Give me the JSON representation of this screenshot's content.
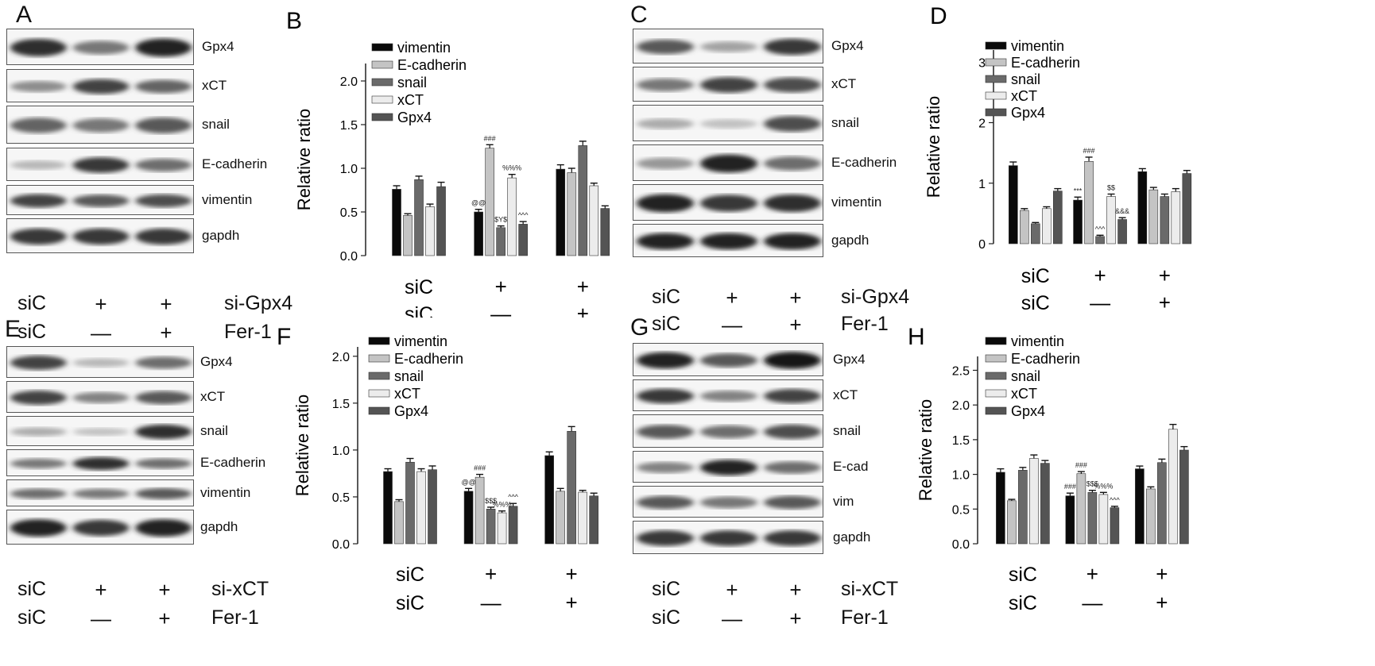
{
  "panels": {
    "A": {
      "letter": "A",
      "bands": [
        "Gpx4",
        "xCT",
        "snail",
        "E-cadherin",
        "vimentin",
        "gapdh"
      ],
      "rows": [
        {
          "c0": "siC",
          "c1": "+",
          "c2": "+",
          "label": "si-Gpx4"
        },
        {
          "c0": "siC",
          "c1": "—",
          "c2": "+",
          "label": "Fer-1"
        }
      ]
    },
    "C": {
      "letter": "C",
      "bands": [
        "Gpx4",
        "xCT",
        "snail",
        "E-cadherin",
        "vimentin",
        "gapdh"
      ],
      "rows": [
        {
          "c0": "siC",
          "c1": "+",
          "c2": "+",
          "label": "si-Gpx4"
        },
        {
          "c0": "siC",
          "c1": "—",
          "c2": "+",
          "label": "Fer-1"
        }
      ]
    },
    "E": {
      "letter": "E",
      "bands": [
        "Gpx4",
        "xCT",
        "snail",
        "E-cadherin",
        "vimentin",
        "gapdh"
      ],
      "rows": [
        {
          "c0": "siC",
          "c1": "+",
          "c2": "+",
          "label": "si-xCT"
        },
        {
          "c0": "siC",
          "c1": "—",
          "c2": "+",
          "label": "Fer-1"
        }
      ]
    },
    "G": {
      "letter": "G",
      "bands": [
        "Gpx4",
        "xCT",
        "snail",
        "E-cad",
        "vim",
        "gapdh"
      ],
      "rows": [
        {
          "c0": "siC",
          "c1": "+",
          "c2": "+",
          "label": "si-xCT"
        },
        {
          "c0": "siC",
          "c1": "—",
          "c2": "+",
          "label": "Fer-1"
        }
      ]
    }
  },
  "chart_data": [
    {
      "id": "B",
      "letter": "B",
      "type": "bar",
      "ylabel": "Relative ratio",
      "ylim": [
        0,
        2.2
      ],
      "yticks": [
        0.0,
        0.5,
        1.0,
        1.5,
        2.0
      ],
      "ytick_labels": [
        "0.0",
        "0.5",
        "1.0",
        "1.5",
        "2.0"
      ],
      "legend": "top-left",
      "groups": [
        {
          "r1": "siC",
          "r2": "siC"
        },
        {
          "r1": "+",
          "r2": "—"
        },
        {
          "r1": "+",
          "r2": "+"
        }
      ],
      "series": [
        {
          "name": "vimentin",
          "color": "#0a0a0a",
          "values": [
            0.76,
            0.5,
            0.99
          ],
          "errors": [
            0.04,
            0.03,
            0.05
          ]
        },
        {
          "name": "E-cadherin",
          "color": "#c4c4c4",
          "values": [
            0.46,
            1.23,
            0.95
          ],
          "errors": [
            0.02,
            0.04,
            0.05
          ]
        },
        {
          "name": "snail",
          "color": "#6a6a6a",
          "values": [
            0.87,
            0.32,
            1.26
          ],
          "errors": [
            0.04,
            0.02,
            0.05
          ]
        },
        {
          "name": "xCT",
          "color": "#ececec",
          "values": [
            0.56,
            0.89,
            0.8
          ],
          "errors": [
            0.03,
            0.04,
            0.03
          ]
        },
        {
          "name": "Gpx4",
          "color": "#545454",
          "values": [
            0.79,
            0.36,
            0.54
          ],
          "errors": [
            0.05,
            0.03,
            0.03
          ]
        }
      ],
      "annotations": [
        {
          "g": 1,
          "s": 0,
          "text": "@@"
        },
        {
          "g": 1,
          "s": 1,
          "text": "###"
        },
        {
          "g": 1,
          "s": 2,
          "text": "$Y$"
        },
        {
          "g": 1,
          "s": 3,
          "text": "%%%"
        },
        {
          "g": 1,
          "s": 4,
          "text": "^^^"
        }
      ]
    },
    {
      "id": "D",
      "letter": "D",
      "type": "bar",
      "ylabel": "Relative ratio",
      "ylim": [
        0,
        3.2
      ],
      "yticks": [
        0,
        1,
        2,
        3
      ],
      "ytick_labels": [
        "0",
        "1",
        "2",
        "3"
      ],
      "legend": "top-left",
      "groups": [
        {
          "r1": "siC",
          "r2": "siC"
        },
        {
          "r1": "+",
          "r2": "—"
        },
        {
          "r1": "+",
          "r2": "+"
        }
      ],
      "series": [
        {
          "name": "vimentin",
          "color": "#0a0a0a",
          "values": [
            1.29,
            0.72,
            1.19
          ],
          "errors": [
            0.06,
            0.05,
            0.05
          ]
        },
        {
          "name": "E-cadherin",
          "color": "#c4c4c4",
          "values": [
            0.55,
            1.36,
            0.89
          ],
          "errors": [
            0.03,
            0.07,
            0.04
          ]
        },
        {
          "name": "snail",
          "color": "#6a6a6a",
          "values": [
            0.33,
            0.12,
            0.78
          ],
          "errors": [
            0.02,
            0.02,
            0.04
          ]
        },
        {
          "name": "xCT",
          "color": "#ececec",
          "values": [
            0.58,
            0.78,
            0.86
          ],
          "errors": [
            0.03,
            0.04,
            0.05
          ]
        },
        {
          "name": "Gpx4",
          "color": "#545454",
          "values": [
            0.87,
            0.4,
            1.16
          ],
          "errors": [
            0.04,
            0.03,
            0.05
          ]
        }
      ],
      "annotations": [
        {
          "g": 1,
          "s": 0,
          "text": "***"
        },
        {
          "g": 1,
          "s": 1,
          "text": "###"
        },
        {
          "g": 1,
          "s": 2,
          "text": "^^^"
        },
        {
          "g": 1,
          "s": 3,
          "text": "$$"
        },
        {
          "g": 1,
          "s": 4,
          "text": "&&&"
        }
      ]
    },
    {
      "id": "F",
      "letter": "F",
      "type": "bar",
      "ylabel": "Relative ratio",
      "ylim": [
        0,
        2.1
      ],
      "yticks": [
        0.0,
        0.5,
        1.0,
        1.5,
        2.0
      ],
      "ytick_labels": [
        "0.0",
        "0.5",
        "1.0",
        "1.5",
        "2.0"
      ],
      "legend": "top-left",
      "groups": [
        {
          "r1": "siC",
          "r2": "siC"
        },
        {
          "r1": "+",
          "r2": "—"
        },
        {
          "r1": "+",
          "r2": "+"
        }
      ],
      "series": [
        {
          "name": "vimentin",
          "color": "#0a0a0a",
          "values": [
            0.77,
            0.56,
            0.94
          ],
          "errors": [
            0.03,
            0.03,
            0.04
          ]
        },
        {
          "name": "E-cadherin",
          "color": "#c4c4c4",
          "values": [
            0.45,
            0.71,
            0.56
          ],
          "errors": [
            0.02,
            0.03,
            0.03
          ]
        },
        {
          "name": "snail",
          "color": "#6a6a6a",
          "values": [
            0.87,
            0.37,
            1.2
          ],
          "errors": [
            0.04,
            0.02,
            0.05
          ]
        },
        {
          "name": "xCT",
          "color": "#ececec",
          "values": [
            0.77,
            0.33,
            0.55
          ],
          "errors": [
            0.03,
            0.02,
            0.02
          ]
        },
        {
          "name": "Gpx4",
          "color": "#545454",
          "values": [
            0.79,
            0.4,
            0.51
          ],
          "errors": [
            0.04,
            0.03,
            0.03
          ]
        }
      ],
      "annotations": [
        {
          "g": 1,
          "s": 0,
          "text": "@@"
        },
        {
          "g": 1,
          "s": 1,
          "text": "###"
        },
        {
          "g": 1,
          "s": 2,
          "text": "$$$"
        },
        {
          "g": 1,
          "s": 3,
          "text": "%%%"
        },
        {
          "g": 1,
          "s": 4,
          "text": "^^^"
        }
      ]
    },
    {
      "id": "H",
      "letter": "H",
      "type": "bar",
      "ylabel": "Relative ratio",
      "ylim": [
        0,
        2.7
      ],
      "yticks": [
        0.0,
        0.5,
        1.0,
        1.5,
        2.0,
        2.5
      ],
      "ytick_labels": [
        "0.0",
        "0.5",
        "1.0",
        "1.5",
        "2.0",
        "2.5"
      ],
      "legend": "top-left",
      "groups": [
        {
          "r1": "siC",
          "r2": "siC"
        },
        {
          "r1": "+",
          "r2": "—"
        },
        {
          "r1": "+",
          "r2": "+"
        }
      ],
      "series": [
        {
          "name": "vimentin",
          "color": "#0a0a0a",
          "values": [
            1.03,
            0.69,
            1.08
          ],
          "errors": [
            0.05,
            0.04,
            0.04
          ]
        },
        {
          "name": "E-cadherin",
          "color": "#c4c4c4",
          "values": [
            0.62,
            1.01,
            0.79
          ],
          "errors": [
            0.02,
            0.03,
            0.03
          ]
        },
        {
          "name": "snail",
          "color": "#6a6a6a",
          "values": [
            1.06,
            0.74,
            1.17
          ],
          "errors": [
            0.04,
            0.03,
            0.05
          ]
        },
        {
          "name": "xCT",
          "color": "#ececec",
          "values": [
            1.23,
            0.71,
            1.65
          ],
          "errors": [
            0.05,
            0.03,
            0.07
          ]
        },
        {
          "name": "Gpx4",
          "color": "#545454",
          "values": [
            1.16,
            0.52,
            1.35
          ],
          "errors": [
            0.04,
            0.02,
            0.05
          ]
        }
      ],
      "annotations": [
        {
          "g": 1,
          "s": 0,
          "text": "###"
        },
        {
          "g": 1,
          "s": 1,
          "text": "###"
        },
        {
          "g": 1,
          "s": 2,
          "text": "$$$"
        },
        {
          "g": 1,
          "s": 3,
          "text": "%%%"
        },
        {
          "g": 1,
          "s": 4,
          "text": "^^^"
        }
      ]
    }
  ]
}
